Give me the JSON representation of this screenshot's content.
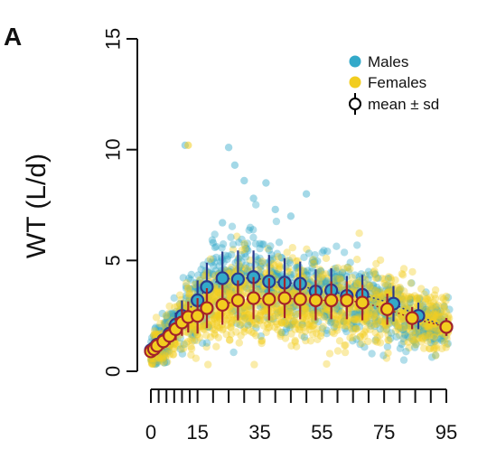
{
  "chart_data": {
    "type": "scatter",
    "panel_label": "A",
    "xlabel": "",
    "ylabel": "WT (L/d)",
    "xlim": [
      0,
      98
    ],
    "ylim": [
      0,
      15
    ],
    "x_ticks": [
      0,
      15,
      35,
      55,
      75,
      95
    ],
    "x_minor_ticks": [
      0,
      2.5,
      5,
      7.5,
      10,
      12.5,
      15,
      20,
      25,
      30,
      35,
      40,
      45,
      50,
      55,
      60,
      65,
      70,
      75,
      80,
      85,
      90,
      95
    ],
    "y_ticks": [
      0,
      5,
      10,
      15
    ],
    "grid": false,
    "legend_position": "top-right",
    "legend": [
      {
        "label": "Males",
        "color": "#33a9c9",
        "kind": "point"
      },
      {
        "label": "Females",
        "color": "#f2cd1f",
        "kind": "point"
      },
      {
        "label": "mean ± sd",
        "color": "#000000",
        "kind": "errorbar"
      }
    ],
    "series": [
      {
        "name": "Males",
        "color": "#33a9c9",
        "stroke": "#2b3a8c",
        "mean_curve": [
          [
            0,
            0.95
          ],
          [
            1,
            1.05
          ],
          [
            2,
            1.2
          ],
          [
            4,
            1.4
          ],
          [
            6,
            1.7
          ],
          [
            8,
            2.1
          ],
          [
            10,
            2.5
          ],
          [
            12,
            2.75
          ],
          [
            15,
            3.2
          ],
          [
            18,
            3.8
          ],
          [
            22,
            4.2
          ],
          [
            26,
            4.15
          ],
          [
            30,
            4.25
          ],
          [
            34,
            4.05
          ],
          [
            38,
            4.0
          ],
          [
            42,
            3.95
          ],
          [
            46,
            3.6
          ],
          [
            50,
            3.6
          ],
          [
            55,
            3.4
          ],
          [
            60,
            3.45
          ],
          [
            65,
            3.2
          ],
          [
            70,
            3.05
          ],
          [
            77,
            2.55
          ],
          [
            84,
            2.1
          ],
          [
            95,
            2.0
          ]
        ],
        "outliers": [
          [
            11,
            10.2
          ],
          [
            25,
            10.1
          ],
          [
            27,
            9.3
          ],
          [
            30,
            8.6
          ],
          [
            33,
            7.8
          ],
          [
            23,
            6.7
          ],
          [
            40,
            7.3
          ],
          [
            45,
            7.0
          ],
          [
            50,
            8.0
          ],
          [
            20,
            5.8
          ],
          [
            37,
            8.5
          ]
        ],
        "points": [
          {
            "x": 0,
            "mean": 0.95,
            "sd": 0.2
          },
          {
            "x": 1,
            "mean": 1.05,
            "sd": 0.25
          },
          {
            "x": 2,
            "mean": 1.2,
            "sd": 0.3
          },
          {
            "x": 4,
            "mean": 1.4,
            "sd": 0.35
          },
          {
            "x": 6,
            "mean": 1.7,
            "sd": 0.45
          },
          {
            "x": 8,
            "mean": 2.1,
            "sd": 0.55
          },
          {
            "x": 10,
            "mean": 2.5,
            "sd": 0.7
          },
          {
            "x": 15,
            "mean": 3.2,
            "sd": 0.9
          },
          {
            "x": 18,
            "mean": 3.8,
            "sd": 1.1
          },
          {
            "x": 23,
            "mean": 4.2,
            "sd": 1.2
          },
          {
            "x": 28,
            "mean": 4.15,
            "sd": 1.3
          },
          {
            "x": 33,
            "mean": 4.25,
            "sd": 1.2
          },
          {
            "x": 38,
            "mean": 4.05,
            "sd": 1.2
          },
          {
            "x": 43,
            "mean": 4.0,
            "sd": 1.1
          },
          {
            "x": 48,
            "mean": 3.95,
            "sd": 1.0
          },
          {
            "x": 53,
            "mean": 3.6,
            "sd": 1.0
          },
          {
            "x": 58,
            "mean": 3.65,
            "sd": 1.0
          },
          {
            "x": 63,
            "mean": 3.4,
            "sd": 0.9
          },
          {
            "x": 68,
            "mean": 3.45,
            "sd": 0.9
          },
          {
            "x": 78,
            "mean": 3.05,
            "sd": 0.8
          },
          {
            "x": 86,
            "mean": 2.5,
            "sd": 0.6
          },
          {
            "x": 95,
            "mean": 2.0,
            "sd": 0.4
          }
        ]
      },
      {
        "name": "Females",
        "color": "#f2cd1f",
        "stroke": "#a3232a",
        "mean_curve": [
          [
            0,
            0.9
          ],
          [
            1,
            1.0
          ],
          [
            2,
            1.15
          ],
          [
            4,
            1.35
          ],
          [
            6,
            1.6
          ],
          [
            8,
            1.9
          ],
          [
            10,
            2.2
          ],
          [
            12,
            2.45
          ],
          [
            15,
            2.5
          ],
          [
            18,
            2.85
          ],
          [
            22,
            3.0
          ],
          [
            26,
            3.2
          ],
          [
            30,
            3.3
          ],
          [
            34,
            3.25
          ],
          [
            38,
            3.3
          ],
          [
            42,
            3.25
          ],
          [
            46,
            3.2
          ],
          [
            50,
            3.2
          ],
          [
            55,
            3.2
          ],
          [
            60,
            3.2
          ],
          [
            65,
            3.1
          ],
          [
            70,
            3.0
          ],
          [
            77,
            2.8
          ],
          [
            84,
            2.4
          ],
          [
            95,
            2.0
          ]
        ],
        "outliers": [],
        "points": [
          {
            "x": 0,
            "mean": 0.9,
            "sd": 0.2
          },
          {
            "x": 1,
            "mean": 1.0,
            "sd": 0.25
          },
          {
            "x": 2,
            "mean": 1.15,
            "sd": 0.3
          },
          {
            "x": 4,
            "mean": 1.35,
            "sd": 0.35
          },
          {
            "x": 6,
            "mean": 1.6,
            "sd": 0.4
          },
          {
            "x": 8,
            "mean": 1.9,
            "sd": 0.5
          },
          {
            "x": 10,
            "mean": 2.2,
            "sd": 0.6
          },
          {
            "x": 12,
            "mean": 2.45,
            "sd": 0.7
          },
          {
            "x": 15,
            "mean": 2.5,
            "sd": 0.8
          },
          {
            "x": 18,
            "mean": 2.85,
            "sd": 0.9
          },
          {
            "x": 23,
            "mean": 3.0,
            "sd": 0.9
          },
          {
            "x": 28,
            "mean": 3.2,
            "sd": 0.9
          },
          {
            "x": 33,
            "mean": 3.3,
            "sd": 0.95
          },
          {
            "x": 38,
            "mean": 3.25,
            "sd": 0.95
          },
          {
            "x": 43,
            "mean": 3.3,
            "sd": 0.9
          },
          {
            "x": 48,
            "mean": 3.25,
            "sd": 0.9
          },
          {
            "x": 53,
            "mean": 3.2,
            "sd": 0.9
          },
          {
            "x": 58,
            "mean": 3.2,
            "sd": 0.85
          },
          {
            "x": 63,
            "mean": 3.2,
            "sd": 0.85
          },
          {
            "x": 68,
            "mean": 3.1,
            "sd": 0.8
          },
          {
            "x": 76,
            "mean": 2.8,
            "sd": 0.7
          },
          {
            "x": 84,
            "mean": 2.4,
            "sd": 0.5
          },
          {
            "x": 95,
            "mean": 2.0,
            "sd": 0.4
          }
        ]
      }
    ]
  }
}
